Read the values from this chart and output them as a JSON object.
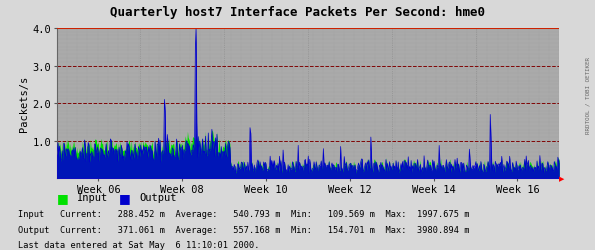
{
  "title": "Quarterly host7 Interface Packets Per Second: hme0",
  "ylabel": "Packets/s",
  "ylim": [
    0,
    4.0
  ],
  "yticks": [
    1.0,
    2.0,
    3.0,
    4.0
  ],
  "background_color": "#d8d8d8",
  "plot_bg_color": "#aaaaaa",
  "grid_color_h": "#800000",
  "grid_color_v": "#888888",
  "input_color": "#00e000",
  "output_color": "#0000cc",
  "title_color": "#000000",
  "week_labels": [
    "Week 06",
    "Week 08",
    "Week 10",
    "Week 12",
    "Week 14",
    "Week 16"
  ],
  "legend_input": "Input",
  "legend_output": "Output",
  "stats_line1": "Input   Current:   288.452 m  Average:   540.793 m  Min:   109.569 m  Max:  1997.675 m",
  "stats_line2": "Output  Current:   371.061 m  Average:   557.168 m  Min:   154.701 m  Max:  3980.894 m",
  "footer": "Last data entered at Sat May  6 11:10:01 2000.",
  "right_label": "RRDTOOL / TOBI OETIKER",
  "n_points": 700
}
